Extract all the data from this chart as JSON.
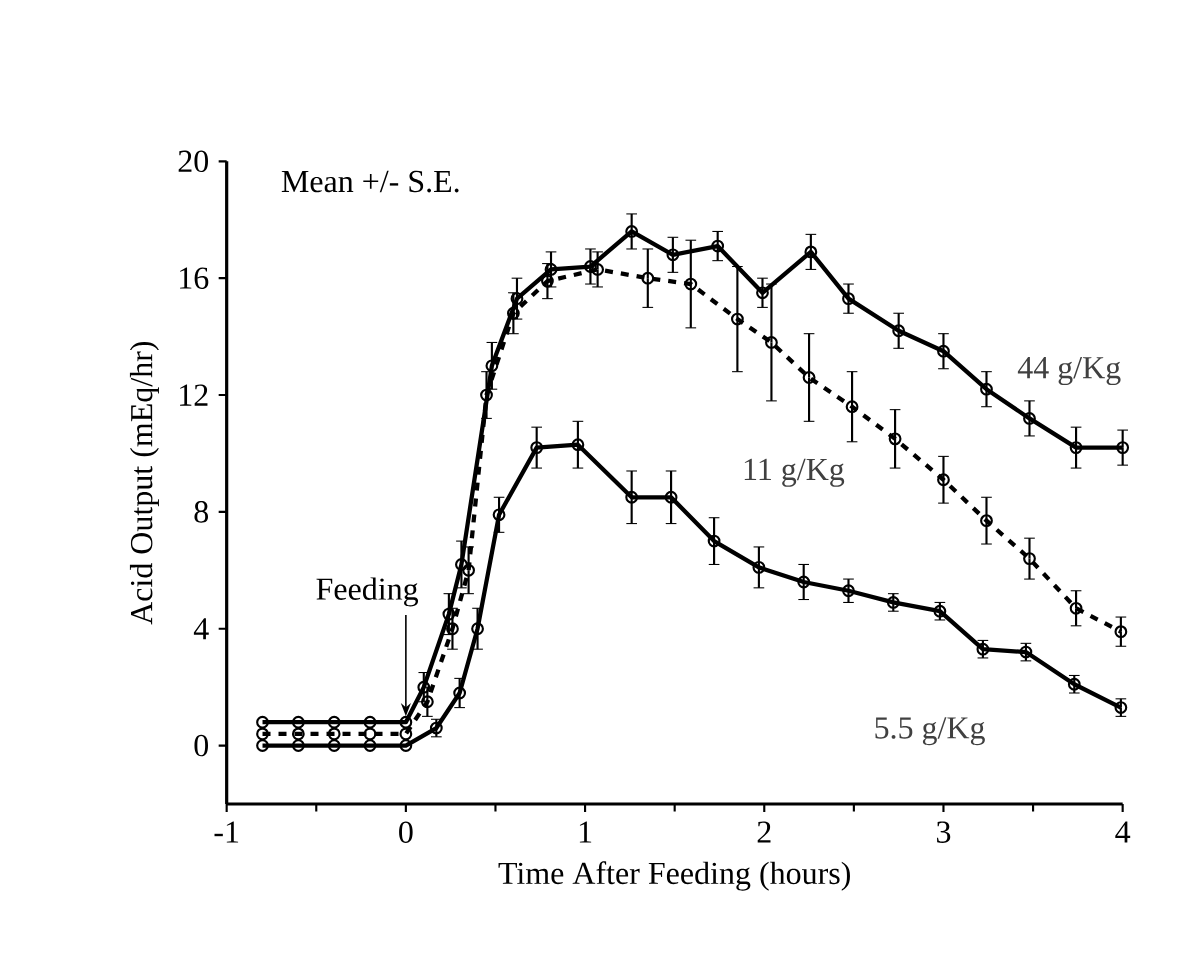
{
  "chart_data": {
    "type": "line",
    "xlabel": "Time After Feeding (hours)",
    "ylabel": "Acid Output (mEq/hr)",
    "annotations": [
      "Mean +/- S.E.",
      {
        "text": "Feeding",
        "x": 0,
        "y": 1
      }
    ],
    "xlim": [
      -1,
      4
    ],
    "xticks": [
      -1,
      0,
      1,
      2,
      3,
      4
    ],
    "ylim": [
      -2,
      20
    ],
    "yticks": [
      0,
      4,
      8,
      12,
      16,
      20
    ],
    "marker": "circle",
    "series": [
      {
        "name": "44 g/Kg",
        "color": "#000000",
        "line_style": "solid",
        "x": [
          -0.8,
          -0.6,
          -0.4,
          -0.2,
          0,
          0.1,
          0.24,
          0.31,
          0.48,
          0.62,
          0.81,
          1.03,
          1.26,
          1.49,
          1.74,
          1.99,
          2.26,
          2.47,
          2.75,
          3.0,
          3.24,
          3.48,
          3.74,
          4.0
        ],
        "values": [
          0.8,
          0.8,
          0.8,
          0.8,
          0.8,
          2.0,
          4.5,
          6.2,
          13.0,
          15.3,
          16.3,
          16.4,
          17.6,
          16.8,
          17.1,
          15.5,
          16.9,
          15.3,
          14.2,
          13.5,
          12.2,
          11.2,
          10.2,
          10.2
        ],
        "errors": [
          null,
          null,
          null,
          null,
          null,
          0.5,
          0.7,
          0.8,
          0.8,
          0.7,
          0.6,
          0.6,
          0.6,
          0.6,
          0.5,
          0.5,
          0.6,
          0.5,
          0.6,
          0.6,
          0.6,
          0.6,
          0.7,
          0.6
        ]
      },
      {
        "name": "11 g/Kg",
        "color": "#000000",
        "line_style": "dashed",
        "x": [
          -0.8,
          -0.6,
          -0.4,
          -0.2,
          0,
          0.12,
          0.26,
          0.35,
          0.45,
          0.6,
          0.79,
          1.07,
          1.35,
          1.59,
          1.85,
          2.04,
          2.25,
          2.49,
          2.73,
          3.0,
          3.24,
          3.48,
          3.74,
          3.99
        ],
        "values": [
          0.4,
          0.4,
          0.4,
          0.4,
          0.4,
          1.5,
          4.0,
          6.0,
          12.0,
          14.8,
          15.9,
          16.3,
          16.0,
          15.8,
          14.6,
          13.8,
          12.6,
          11.6,
          10.5,
          9.1,
          7.7,
          6.4,
          4.7,
          3.9
        ],
        "errors": [
          null,
          null,
          null,
          null,
          null,
          0.5,
          0.7,
          0.8,
          0.8,
          0.7,
          0.6,
          0.6,
          1.0,
          1.5,
          1.8,
          2.0,
          1.5,
          1.2,
          1.0,
          0.8,
          0.8,
          0.7,
          0.6,
          0.5
        ]
      },
      {
        "name": "5.5 g/Kg",
        "color": "#000000",
        "line_style": "solid",
        "x": [
          -0.8,
          -0.6,
          -0.4,
          -0.2,
          0,
          0.17,
          0.3,
          0.4,
          0.52,
          0.73,
          0.96,
          1.26,
          1.48,
          1.72,
          1.97,
          2.22,
          2.47,
          2.72,
          2.98,
          3.22,
          3.46,
          3.73,
          3.99
        ],
        "values": [
          0,
          0,
          0,
          0,
          0,
          0.6,
          1.8,
          4.0,
          7.9,
          10.2,
          10.3,
          8.5,
          8.5,
          7.0,
          6.1,
          5.6,
          5.3,
          4.9,
          4.6,
          3.3,
          3.2,
          2.1,
          1.3
        ],
        "errors": [
          null,
          null,
          null,
          null,
          null,
          0.3,
          0.5,
          0.7,
          0.6,
          0.7,
          0.8,
          0.9,
          0.9,
          0.8,
          0.7,
          0.6,
          0.4,
          0.3,
          0.3,
          0.3,
          0.3,
          0.3,
          0.3
        ]
      }
    ]
  }
}
